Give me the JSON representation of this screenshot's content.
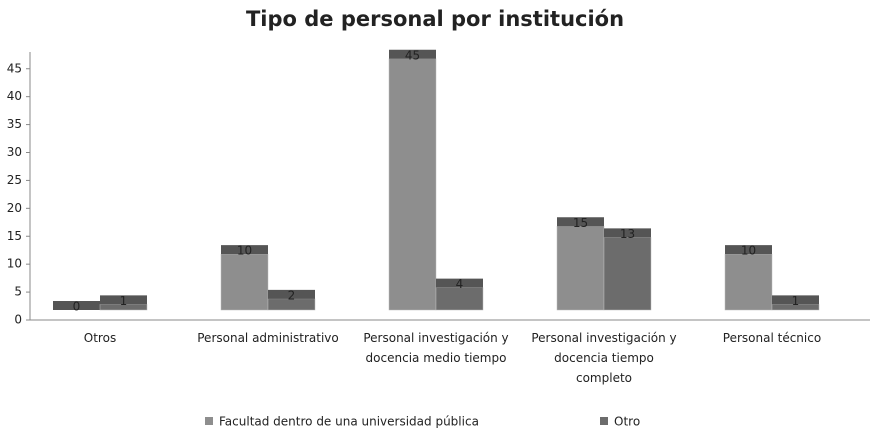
{
  "chart_data": {
    "type": "bar",
    "title": "Tipo de personal por institución",
    "categories": [
      "Otros",
      "Personal administrativo",
      "Personal investigación y docencia medio tiempo",
      "Personal investigación y docencia tiempo completo",
      "Personal técnico"
    ],
    "series": [
      {
        "name": "Facultad dentro de una universidad pública",
        "color": "#8e8e8e",
        "values": [
          0,
          10,
          45,
          15,
          10
        ]
      },
      {
        "name": "Otro",
        "color": "#6c6c6c",
        "values": [
          1,
          2,
          4,
          13,
          1
        ]
      }
    ],
    "ylim": [
      0,
      48
    ],
    "yticks": [
      0,
      5,
      10,
      15,
      20,
      25,
      30,
      35,
      40,
      45
    ],
    "legend": "bottom"
  }
}
